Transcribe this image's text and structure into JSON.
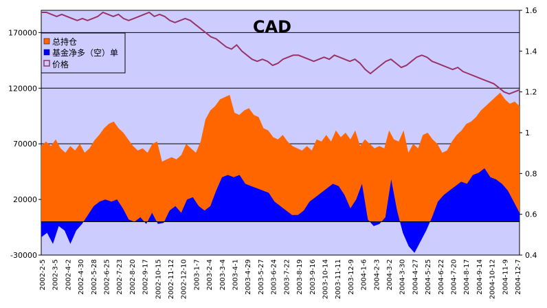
{
  "chart_data": {
    "type": "area",
    "title": "CAD",
    "xlabel": "",
    "ylabel_left": "",
    "ylabel_right": "",
    "ylim_left": [
      -30000,
      190000
    ],
    "ylim_right": [
      0.4,
      1.6
    ],
    "left_ticks": [
      "170000",
      "120000",
      "70000",
      "20000",
      "-30000"
    ],
    "left_tick_values": [
      170000,
      120000,
      70000,
      20000,
      -30000
    ],
    "right_ticks": [
      "1.6",
      "1.4",
      "1.2",
      "1",
      "0.8",
      "0.6",
      "0.4"
    ],
    "right_tick_values": [
      1.6,
      1.4,
      1.2,
      1.0,
      0.8,
      0.6,
      0.4
    ],
    "x_tick_labels": [
      "2002-2-5",
      "2002-3-5",
      "2002-4-2",
      "2002-4-30",
      "2002-5-28",
      "2002-6-25",
      "2002-7-23",
      "2002-8-20",
      "2002-9-17",
      "2002-10-15",
      "2002-11-12",
      "2002-12-10",
      "2003-1-7",
      "2003-2-4",
      "2003-3-4",
      "2003-4-1",
      "2003-4-29",
      "2003-5-27",
      "2003-6-24",
      "2003-7-22",
      "2003-8-19",
      "2003-9-16",
      "2003-10-14",
      "2003-11-11",
      "2003-12-9",
      "2004-1-6",
      "2004-2-3",
      "2004-3-2",
      "2004-3-30",
      "2004-4-27",
      "2004-5-25",
      "2004-6-22",
      "2004-7-20",
      "2004-8-17",
      "2004-9-14",
      "2004-10-12",
      "2004-11-9",
      "2004-12-7"
    ],
    "legend": [
      {
        "name": "总持仓",
        "color": "#FF6600",
        "marker": "square"
      },
      {
        "name": "基金净多（空）单",
        "color": "#0000FF",
        "marker": "square"
      },
      {
        "name": "价格",
        "color": "#993366",
        "marker": "line"
      }
    ],
    "legend_position": "top-left",
    "background_color": "#CCCCFF",
    "gridlines": "horizontal",
    "series": [
      {
        "name": "总持仓",
        "axis": "left",
        "kind": "area",
        "color": "#FF6600",
        "values": [
          68000,
          72000,
          68000,
          74000,
          66000,
          62000,
          68000,
          64000,
          70000,
          62000,
          66000,
          73000,
          78000,
          84000,
          88000,
          90000,
          84000,
          80000,
          74000,
          68000,
          64000,
          66000,
          62000,
          70000,
          72000,
          54000,
          56000,
          58000,
          56000,
          60000,
          70000,
          66000,
          62000,
          72000,
          92000,
          100000,
          104000,
          110000,
          112000,
          114000,
          98000,
          96000,
          100000,
          102000,
          96000,
          94000,
          84000,
          82000,
          76000,
          74000,
          78000,
          72000,
          68000,
          66000,
          64000,
          68000,
          64000,
          74000,
          72000,
          78000,
          72000,
          82000,
          76000,
          80000,
          74000,
          82000,
          68000,
          74000,
          70000,
          66000,
          68000,
          66000,
          82000,
          74000,
          72000,
          82000,
          62000,
          70000,
          66000,
          78000,
          80000,
          74000,
          70000,
          62000,
          64000,
          72000,
          78000,
          82000,
          88000,
          90000,
          94000,
          100000,
          104000,
          108000,
          112000,
          116000,
          110000,
          106000,
          108000,
          104000
        ]
      },
      {
        "name": "基金净多（空）单",
        "axis": "left",
        "kind": "area",
        "color": "#0000FF",
        "values": [
          -14000,
          -10000,
          -20000,
          -4000,
          -8000,
          -20000,
          -8000,
          -2000,
          6000,
          14000,
          18000,
          20000,
          18000,
          20000,
          12000,
          2000,
          0,
          4000,
          -2000,
          8000,
          -2000,
          -1000,
          10000,
          14000,
          8000,
          20000,
          22000,
          14000,
          10000,
          14000,
          28000,
          40000,
          42000,
          40000,
          42000,
          34000,
          32000,
          30000,
          28000,
          26000,
          18000,
          14000,
          10000,
          6000,
          6000,
          10000,
          18000,
          22000,
          26000,
          30000,
          34000,
          32000,
          24000,
          12000,
          20000,
          34000,
          2000,
          -4000,
          -2000,
          4000,
          38000,
          10000,
          -10000,
          -22000,
          -28000,
          -18000,
          -8000,
          4000,
          18000,
          24000,
          28000,
          32000,
          36000,
          34000,
          42000,
          44000,
          48000,
          40000,
          38000,
          34000,
          28000,
          18000,
          8000
        ]
      },
      {
        "name": "价格",
        "axis": "right",
        "kind": "line",
        "color": "#993366",
        "values": [
          1.59,
          1.59,
          1.58,
          1.57,
          1.58,
          1.57,
          1.56,
          1.55,
          1.56,
          1.55,
          1.56,
          1.57,
          1.59,
          1.58,
          1.57,
          1.58,
          1.56,
          1.55,
          1.56,
          1.57,
          1.58,
          1.59,
          1.57,
          1.58,
          1.57,
          1.55,
          1.54,
          1.55,
          1.56,
          1.55,
          1.53,
          1.51,
          1.49,
          1.47,
          1.46,
          1.44,
          1.42,
          1.41,
          1.43,
          1.4,
          1.38,
          1.36,
          1.35,
          1.36,
          1.35,
          1.33,
          1.34,
          1.36,
          1.37,
          1.38,
          1.38,
          1.37,
          1.36,
          1.35,
          1.36,
          1.37,
          1.36,
          1.38,
          1.37,
          1.36,
          1.35,
          1.36,
          1.34,
          1.31,
          1.29,
          1.31,
          1.33,
          1.35,
          1.36,
          1.34,
          1.32,
          1.33,
          1.35,
          1.37,
          1.38,
          1.37,
          1.35,
          1.34,
          1.33,
          1.32,
          1.31,
          1.32,
          1.3,
          1.29,
          1.28,
          1.27,
          1.26,
          1.25,
          1.24,
          1.22,
          1.2,
          1.19,
          1.2,
          1.21
        ]
      }
    ]
  }
}
